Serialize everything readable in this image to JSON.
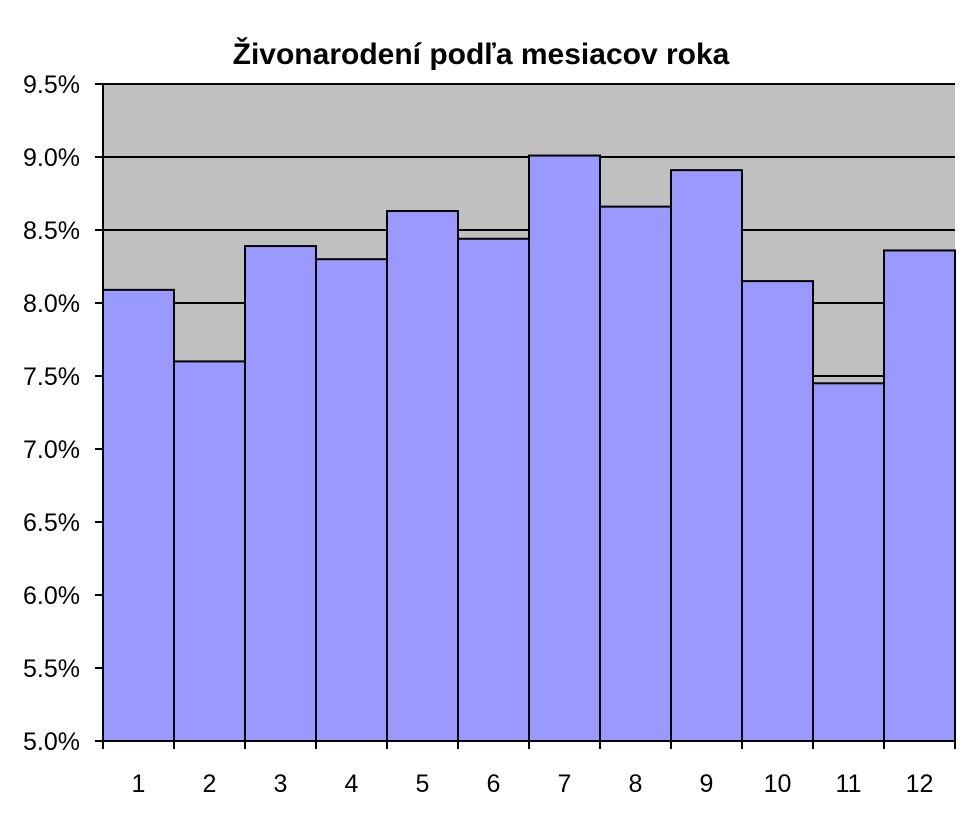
{
  "chart_data": {
    "type": "bar",
    "title": "Živonarodení podľa mesiacov roka",
    "xlabel": "",
    "ylabel": "",
    "categories": [
      "1",
      "2",
      "3",
      "4",
      "5",
      "6",
      "7",
      "8",
      "9",
      "10",
      "11",
      "12"
    ],
    "values": [
      8.09,
      7.6,
      8.39,
      8.3,
      8.63,
      8.44,
      9.01,
      8.66,
      8.91,
      8.15,
      7.45,
      8.36
    ],
    "ylim": [
      5.0,
      9.5
    ],
    "yticks": [
      5.0,
      5.5,
      6.0,
      6.5,
      7.0,
      7.5,
      8.0,
      8.5,
      9.0,
      9.5
    ],
    "ytick_labels": [
      "5.0%",
      "5.5%",
      "6.0%",
      "6.5%",
      "7.0%",
      "7.5%",
      "8.0%",
      "8.5%",
      "9.0%",
      "9.5%"
    ],
    "grid": true,
    "legend": false,
    "colors": {
      "bar_fill": "#9999ff",
      "bar_stroke": "#000000",
      "plot_background": "#c0c0c0",
      "gridline": "#000000"
    }
  }
}
